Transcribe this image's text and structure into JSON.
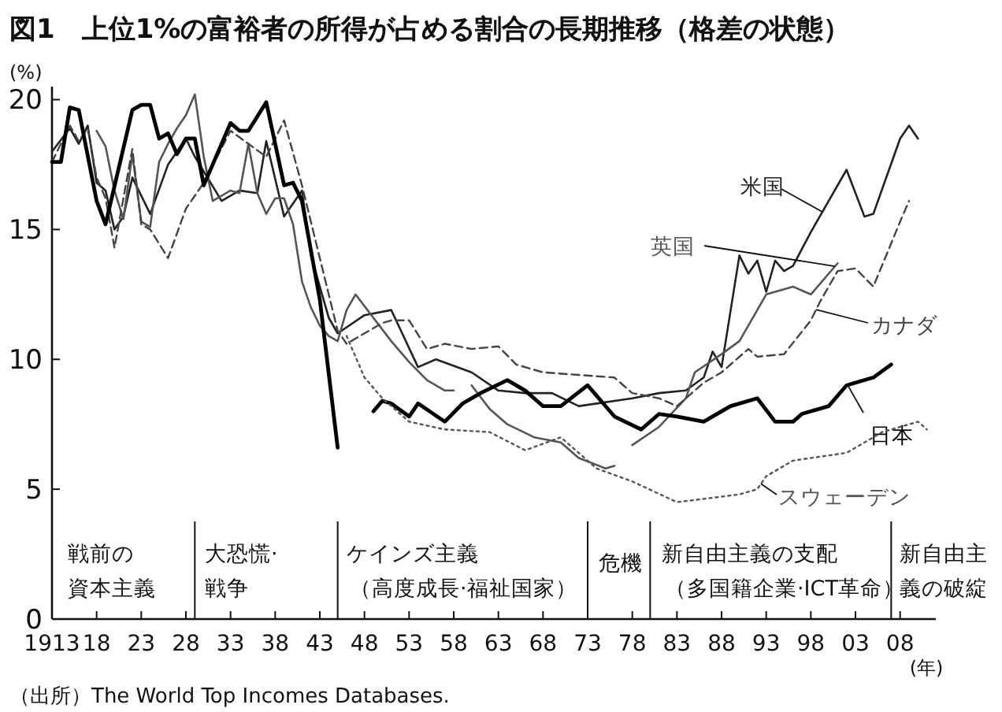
{
  "chart_data": {
    "type": "line",
    "title": "図1　上位1%の富裕者の所得が占める割合の長期推移（格差の状態）",
    "ylabel": "(%)",
    "xlabel": "(年)",
    "xlim": [
      1913,
      2012
    ],
    "ylim": [
      0,
      20.5
    ],
    "xticks": [
      {
        "value": 1913,
        "label": "1913"
      },
      {
        "value": 1918,
        "label": "18"
      },
      {
        "value": 1923,
        "label": "23"
      },
      {
        "value": 1928,
        "label": "28"
      },
      {
        "value": 1933,
        "label": "33"
      },
      {
        "value": 1938,
        "label": "38"
      },
      {
        "value": 1943,
        "label": "43"
      },
      {
        "value": 1948,
        "label": "48"
      },
      {
        "value": 1953,
        "label": "53"
      },
      {
        "value": 1958,
        "label": "58"
      },
      {
        "value": 1963,
        "label": "63"
      },
      {
        "value": 1968,
        "label": "68"
      },
      {
        "value": 1973,
        "label": "73"
      },
      {
        "value": 1978,
        "label": "78"
      },
      {
        "value": 1983,
        "label": "83"
      },
      {
        "value": 1988,
        "label": "88"
      },
      {
        "value": 1993,
        "label": "93"
      },
      {
        "value": 1998,
        "label": "98"
      },
      {
        "value": 2003,
        "label": "03"
      },
      {
        "value": 2008,
        "label": "08"
      }
    ],
    "yticks": [
      0,
      5,
      10,
      15,
      20
    ],
    "grid": false,
    "legend": false,
    "series": [
      {
        "name": "米国",
        "color": "#222222",
        "line_style": "solid",
        "x": [
          1913,
          1915,
          1916,
          1917,
          1918,
          1919,
          1920,
          1921,
          1922,
          1924,
          1926,
          1928,
          1929,
          1932,
          1934,
          1936,
          1937,
          1939,
          1941,
          1942,
          1944,
          1945,
          1948,
          1951,
          1954,
          1956,
          1960,
          1963,
          1966,
          1969,
          1972,
          1978,
          1981,
          1984,
          1986,
          1987,
          1988,
          1990,
          1991,
          1992,
          1993,
          1994,
          1995,
          1996,
          1998,
          2002,
          2004,
          2005,
          2008,
          2009,
          2010
        ],
        "values": [
          18.0,
          18.9,
          18.3,
          19.0,
          16.8,
          16.5,
          15.0,
          15.5,
          17.0,
          15.6,
          17.5,
          18.5,
          17.8,
          16.1,
          16.5,
          16.4,
          18.4,
          15.5,
          16.5,
          14.0,
          11.6,
          11.0,
          11.7,
          11.9,
          9.7,
          10.0,
          9.5,
          8.8,
          8.7,
          8.7,
          8.2,
          8.5,
          8.7,
          8.8,
          9.3,
          10.3,
          9.7,
          14.0,
          13.3,
          13.8,
          12.6,
          13.8,
          13.4,
          13.6,
          14.9,
          17.3,
          15.5,
          15.6,
          18.5,
          19.0,
          18.5
        ]
      },
      {
        "name": "英国",
        "color": "#555555",
        "line_style": "solid",
        "x": [
          1918,
          1919,
          1920,
          1921,
          1922,
          1923,
          1924,
          1925,
          1926,
          1927,
          1928,
          1929,
          1930,
          1931,
          1932,
          1933,
          1934,
          1935,
          1936,
          1937,
          1938,
          1939,
          1940,
          1941,
          1942,
          1943,
          1944,
          1945,
          1946,
          1947,
          1949,
          1951,
          1953,
          1955,
          1957,
          1958,
          1959,
          1960,
          1962,
          1964,
          1967,
          1970,
          1972,
          1975,
          1976,
          1977,
          1978,
          1981,
          1984,
          1985,
          1988,
          1990,
          1992,
          1993,
          1995,
          1996,
          1998,
          2001
        ],
        "values": [
          18.8,
          18.2,
          16.5,
          15.4,
          17.9,
          15.3,
          15.1,
          17.6,
          18.3,
          18.9,
          19.4,
          20.2,
          17.8,
          16.1,
          16.3,
          16.5,
          16.4,
          18.3,
          16.4,
          15.6,
          16.2,
          16.2,
          15.2,
          13.0,
          12.0,
          11.3,
          10.9,
          10.7,
          11.9,
          12.5,
          11.6,
          10.7,
          9.9,
          9.2,
          8.8,
          8.8,
          null,
          9.0,
          8.1,
          7.5,
          7.0,
          6.8,
          6.2,
          5.8,
          5.9,
          null,
          6.7,
          7.4,
          8.5,
          9.5,
          10.2,
          10.7,
          11.9,
          12.5,
          12.7,
          12.8,
          12.5,
          13.7
        ]
      },
      {
        "name": "カナダ",
        "color": "#444444",
        "line_style": "dashed",
        "x": [
          1913,
          1915,
          1916,
          1917,
          1918,
          1919,
          1920,
          1922,
          1923,
          1924,
          1926,
          1928,
          1930,
          1933,
          1935,
          1937,
          1939,
          1941,
          1943,
          1945,
          1946,
          1948,
          1950,
          1951,
          1953,
          1955,
          1957,
          1960,
          1963,
          1965,
          1968,
          1972,
          1976,
          1978,
          1981,
          1983,
          1986,
          1988,
          1991,
          1992,
          1995,
          1998,
          1999,
          2001,
          2003,
          2005,
          2008,
          2009
        ],
        "values": [
          17.6,
          19.0,
          18.4,
          18.9,
          17.0,
          16.2,
          14.3,
          18.1,
          15.2,
          15.0,
          13.9,
          15.8,
          16.8,
          18.8,
          18.3,
          17.8,
          19.2,
          16.7,
          13.9,
          11.1,
          10.6,
          11.0,
          11.4,
          11.5,
          11.5,
          10.4,
          10.6,
          10.4,
          10.5,
          9.8,
          9.5,
          9.4,
          9.3,
          8.7,
          8.5,
          8.2,
          9.1,
          9.5,
          10.4,
          10.1,
          10.2,
          11.5,
          12.2,
          13.4,
          13.5,
          12.8,
          15.3,
          16.1
        ]
      },
      {
        "name": "日本",
        "color": "#000000",
        "line_style": "solid",
        "x": [
          1913,
          1914,
          1915,
          1916,
          1918,
          1919,
          1922,
          1923,
          1924,
          1925,
          1926,
          1927,
          1928,
          1929,
          1930,
          1931,
          1933,
          1934,
          1935,
          1937,
          1939,
          1940,
          1941,
          1943,
          1945,
          1947,
          1949,
          1950,
          1951,
          1953,
          1954,
          1957,
          1959,
          1961,
          1964,
          1966,
          1968,
          1970,
          1973,
          1976,
          1979,
          1981,
          1983,
          1986,
          1989,
          1992,
          1994,
          1996,
          1997,
          2000,
          2002,
          2005,
          2007
        ],
        "values": [
          17.6,
          17.6,
          19.7,
          19.6,
          16.1,
          15.2,
          19.6,
          19.8,
          19.8,
          18.5,
          18.7,
          17.9,
          18.5,
          18.5,
          16.7,
          17.5,
          19.1,
          18.8,
          18.8,
          19.9,
          16.7,
          16.8,
          16.1,
          12.3,
          6.6,
          null,
          8.0,
          8.4,
          8.3,
          7.8,
          8.3,
          7.6,
          8.3,
          8.7,
          9.2,
          8.8,
          8.2,
          8.2,
          9.0,
          7.8,
          7.3,
          7.9,
          7.8,
          7.6,
          8.2,
          8.5,
          7.6,
          7.6,
          7.9,
          8.2,
          9.0,
          9.3,
          9.8
        ]
      },
      {
        "name": "スウェーデン",
        "color": "#555555",
        "line_style": "dotted",
        "x": [
          1946,
          1948,
          1950,
          1953,
          1957,
          1962,
          1966,
          1970,
          1974,
          1978,
          1983,
          1990,
          1992,
          1993,
          1996,
          2002,
          2006,
          2010,
          2011
        ],
        "values": [
          10.9,
          9.3,
          8.5,
          7.6,
          7.3,
          7.2,
          6.5,
          7.0,
          5.8,
          5.3,
          4.5,
          4.8,
          5.0,
          5.5,
          6.1,
          6.4,
          7.2,
          7.6,
          7.3
        ]
      }
    ],
    "ref_lines": [
      {
        "axis": "x",
        "value": 1929,
        "color": "#111111"
      },
      {
        "axis": "x",
        "value": 1945,
        "color": "#111111"
      },
      {
        "axis": "x",
        "value": 1973,
        "color": "#111111"
      },
      {
        "axis": "x",
        "value": 1980,
        "color": "#111111"
      },
      {
        "axis": "x",
        "value": 2007,
        "color": "#111111"
      }
    ],
    "annotations": [
      "（出所）The World Top Incomes Databases.",
      "戦前の",
      "資本主義",
      "大恐慌·",
      "戦争",
      "ケインズ主義",
      "（高度成長·福祉国家）",
      "危機",
      "新自由主義の支配",
      "（多国籍企業·ICT革命）",
      "新自由主",
      "義の破綻"
    ]
  }
}
